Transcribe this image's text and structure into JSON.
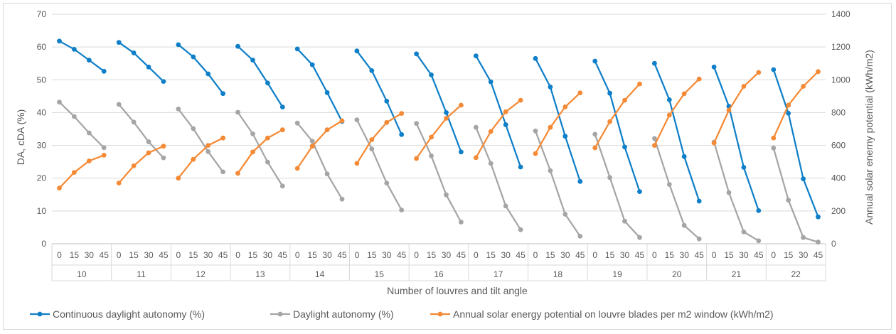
{
  "chart_data": {
    "type": "line",
    "xlabel": "Number of louvres and tilt angle",
    "ylabel": "DA, cDA (%)",
    "y2label": "Annual solar enerny potential (kWh/m2)",
    "ylim": [
      0,
      70
    ],
    "y2lim": [
      0,
      1400
    ],
    "yticks": [
      "0",
      "10",
      "20",
      "30",
      "40",
      "50",
      "60",
      "70"
    ],
    "y2ticks": [
      "0",
      "200",
      "400",
      "600",
      "800",
      "1000",
      "1200",
      "1400"
    ],
    "groups": [
      "10",
      "11",
      "12",
      "13",
      "14",
      "15",
      "16",
      "17",
      "18",
      "19",
      "20",
      "21",
      "22"
    ],
    "angles": [
      "0",
      "15",
      "30",
      "45"
    ],
    "legend_position": "bottom",
    "gridlines": true,
    "series": [
      {
        "name": "Continuous daylight autonomy (%)",
        "axis": "left",
        "color": "#0f7fc8",
        "values": [
          [
            61.8,
            59.3,
            56.0,
            52.6
          ],
          [
            61.4,
            58.2,
            53.9,
            49.5
          ],
          [
            60.7,
            57.0,
            51.8,
            45.8
          ],
          [
            60.2,
            56.0,
            49.0,
            41.7
          ],
          [
            59.4,
            54.6,
            46.1,
            37.3
          ],
          [
            58.8,
            52.8,
            43.5,
            33.3
          ],
          [
            57.9,
            51.5,
            40.0,
            28.0
          ],
          [
            57.3,
            49.4,
            36.3,
            23.4
          ],
          [
            56.5,
            47.8,
            32.8,
            19.0
          ],
          [
            55.7,
            45.9,
            29.5,
            15.9
          ],
          [
            55.0,
            43.9,
            26.6,
            13.0
          ],
          [
            53.9,
            41.9,
            23.3,
            10.1
          ],
          [
            53.1,
            39.8,
            19.8,
            8.2
          ]
        ]
      },
      {
        "name": "Daylight autonomy (%)",
        "axis": "left",
        "color": "#a5a5a5",
        "values": [
          [
            43.2,
            38.8,
            33.8,
            29.3
          ],
          [
            42.5,
            37.1,
            31.1,
            26.2
          ],
          [
            41.1,
            35.1,
            28.1,
            21.9
          ],
          [
            40.1,
            33.5,
            24.9,
            17.6
          ],
          [
            36.8,
            31.3,
            21.3,
            13.6
          ],
          [
            37.8,
            28.9,
            18.5,
            10.3
          ],
          [
            36.7,
            26.8,
            14.9,
            6.6
          ],
          [
            35.5,
            24.5,
            11.5,
            4.3
          ],
          [
            34.4,
            22.3,
            9.0,
            2.3
          ],
          [
            33.4,
            20.2,
            6.9,
            1.9
          ],
          [
            32.1,
            18.1,
            5.6,
            1.5
          ],
          [
            31.0,
            15.6,
            3.6,
            0.9
          ],
          [
            29.2,
            13.3,
            1.9,
            0.5
          ]
        ]
      },
      {
        "name": "Annual solar energy potential on louvre blades per m2 window (kWh/m2)",
        "axis": "right",
        "color": "#f58a36",
        "values": [
          [
            340,
            435,
            505,
            540
          ],
          [
            370,
            475,
            555,
            595
          ],
          [
            400,
            515,
            600,
            645
          ],
          [
            430,
            560,
            645,
            695
          ],
          [
            460,
            595,
            695,
            750
          ],
          [
            490,
            635,
            740,
            795
          ],
          [
            520,
            650,
            765,
            845
          ],
          [
            525,
            685,
            805,
            875
          ],
          [
            550,
            710,
            835,
            920
          ],
          [
            585,
            745,
            875,
            975
          ],
          [
            600,
            785,
            915,
            1005
          ],
          [
            615,
            815,
            960,
            1045
          ],
          [
            645,
            845,
            960,
            1050
          ]
        ]
      }
    ]
  }
}
